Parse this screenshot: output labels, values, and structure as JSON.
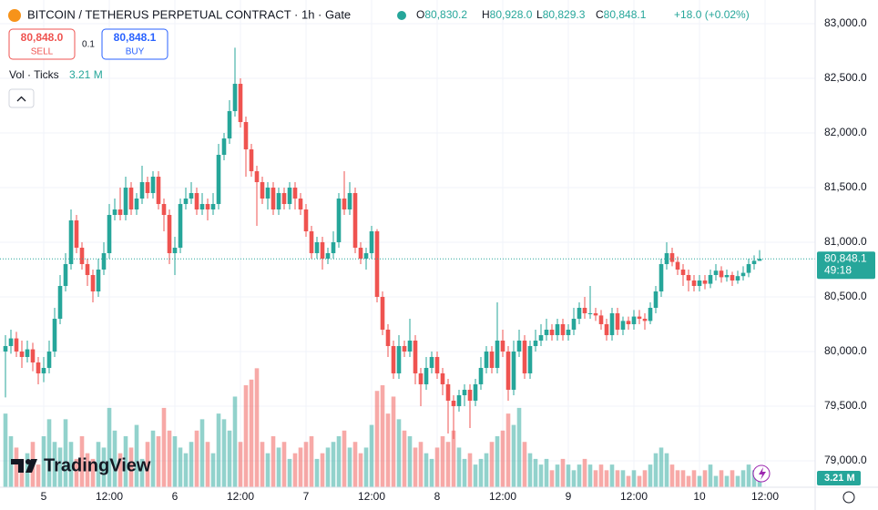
{
  "header": {
    "title": "BITCOIN / TETHERUS PERPETUAL CONTRACT · 1h · Gate",
    "ohlc": [
      {
        "key": "O",
        "value": "80,830.2"
      },
      {
        "key": "H",
        "value": "80,928.0"
      },
      {
        "key": "L",
        "value": "80,829.3"
      },
      {
        "key": "C",
        "value": "80,848.1"
      }
    ],
    "change": "+18.0 (+0.02%)"
  },
  "trade": {
    "sell_price": "80,848.0",
    "sell": "SELL",
    "spread": "0.1",
    "buy_price": "80,848.1",
    "buy": "BUY"
  },
  "volume_legend": {
    "name": "Vol · Ticks",
    "readout": "3.21 M"
  },
  "price_tag": {
    "price": "80,848.1",
    "countdown": "49:18"
  },
  "logo": "TradingView",
  "chart_data": {
    "type": "candlestick",
    "up_color": "#26a69a",
    "down_color": "#ef5350",
    "grid": true,
    "ylim": [
      78758,
      83217
    ],
    "volume_lim": [
      0,
      86
    ],
    "yticks": [
      {
        "value": 79000,
        "label": "79,000.0"
      },
      {
        "value": 79500,
        "label": "79,500.0"
      },
      {
        "value": 80000,
        "label": "80,000.0"
      },
      {
        "value": 80500,
        "label": "80,500.0"
      },
      {
        "value": 81000,
        "label": "81,000.0"
      },
      {
        "value": 81500,
        "label": "81,500.0"
      },
      {
        "value": 82000,
        "label": "82,000.0"
      },
      {
        "value": 82500,
        "label": "82,500.0"
      },
      {
        "value": 83000,
        "label": "83,000.0"
      }
    ],
    "xticks": [
      {
        "value": 7,
        "label": "5"
      },
      {
        "value": 19,
        "label": "12:00"
      },
      {
        "value": 31,
        "label": "6"
      },
      {
        "value": 43,
        "label": "12:00"
      },
      {
        "value": 55,
        "label": "7"
      },
      {
        "value": 67,
        "label": "12:00"
      },
      {
        "value": 79,
        "label": "8"
      },
      {
        "value": 91,
        "label": "12:00"
      },
      {
        "value": 103,
        "label": "9"
      },
      {
        "value": 115,
        "label": "12:00"
      },
      {
        "value": 127,
        "label": "10"
      },
      {
        "value": 139,
        "label": "12:00"
      }
    ],
    "open": [
      80000,
      80050,
      80120,
      80000,
      79950,
      80020,
      79900,
      79800,
      79850,
      80000,
      80300,
      80600,
      80800,
      81200,
      80950,
      80800,
      80700,
      80550,
      80750,
      80900,
      81250,
      81300,
      81250,
      81500,
      81300,
      81400,
      81550,
      81450,
      81600,
      81350,
      81250,
      80900,
      80950,
      81350,
      81400,
      81450,
      81300,
      81350,
      81300,
      81350,
      81800,
      81950,
      82200,
      82450,
      82100,
      81850,
      81650,
      81550,
      81400,
      81500,
      81300,
      81450,
      81350,
      81500,
      81400,
      81300,
      81100,
      80900,
      81000,
      80850,
      80900,
      81000,
      81400,
      81300,
      81450,
      80950,
      80850,
      80900,
      81100,
      80500,
      80200,
      80050,
      79800,
      80050,
      80000,
      80100,
      79800,
      79700,
      79850,
      79950,
      79800,
      79700,
      79550,
      79500,
      79600,
      79650,
      79550,
      79700,
      79850,
      80000,
      79850,
      80100,
      80000,
      79650,
      80000,
      80100,
      79800,
      80050,
      80100,
      80150,
      80200,
      80150,
      80250,
      80150,
      80200,
      80300,
      80400,
      80350,
      80350,
      80330,
      80250,
      80150,
      80350,
      80200,
      80280,
      80250,
      80320,
      80300,
      80280,
      80400,
      80550,
      80800,
      80900,
      80820,
      80750,
      80700,
      80650,
      80600,
      80650,
      80620,
      80700,
      80740,
      80680,
      80700,
      80650,
      80690,
      80720,
      80800,
      80830.2
    ],
    "high": [
      80150,
      80200,
      80180,
      80100,
      80100,
      80080,
      79950,
      79950,
      80100,
      80400,
      80700,
      80900,
      81300,
      81250,
      81000,
      80850,
      80750,
      80850,
      81000,
      81350,
      81400,
      81500,
      81600,
      81550,
      81450,
      81700,
      81600,
      81650,
      81650,
      81400,
      81300,
      81050,
      81400,
      81500,
      81550,
      81500,
      81450,
      81400,
      81450,
      81900,
      82000,
      82300,
      82780,
      82500,
      82150,
      81900,
      81700,
      81600,
      81550,
      81550,
      81500,
      81500,
      81550,
      81550,
      81450,
      81350,
      81150,
      81050,
      81050,
      80950,
      81100,
      81450,
      81650,
      81550,
      81500,
      81000,
      80950,
      81150,
      81120,
      80550,
      80250,
      80100,
      80150,
      80100,
      80300,
      80150,
      79850,
      79950,
      80000,
      80000,
      79850,
      79750,
      79600,
      79650,
      79700,
      79700,
      79750,
      79950,
      80050,
      80050,
      80450,
      80200,
      80050,
      80100,
      80200,
      80150,
      80100,
      80200,
      80250,
      80300,
      80250,
      80300,
      80300,
      80250,
      80400,
      80450,
      80500,
      80600,
      80400,
      80380,
      80300,
      80400,
      80400,
      80320,
      80320,
      80380,
      80380,
      80350,
      80450,
      80600,
      80850,
      81000,
      80950,
      80870,
      80800,
      80750,
      80700,
      80700,
      80700,
      80750,
      80800,
      80780,
      80750,
      80730,
      80740,
      80780,
      80850,
      80880,
      80928
    ],
    "low": [
      79580,
      79980,
      79950,
      79850,
      79900,
      79820,
      79700,
      79720,
      79800,
      79950,
      80250,
      80550,
      80750,
      80900,
      80750,
      80600,
      80450,
      80500,
      80700,
      80850,
      81200,
      81200,
      81200,
      81250,
      81250,
      81350,
      81400,
      81400,
      81300,
      81100,
      80800,
      80700,
      80900,
      81300,
      81350,
      81250,
      81250,
      81200,
      81250,
      81300,
      81750,
      81900,
      82150,
      82050,
      81600,
      81600,
      81150,
      81350,
      81300,
      81250,
      81250,
      81300,
      81300,
      81300,
      81250,
      81050,
      80850,
      80850,
      80750,
      80800,
      80850,
      80950,
      81250,
      81250,
      80900,
      80800,
      80750,
      80850,
      80450,
      80150,
      79950,
      79750,
      79750,
      79950,
      79950,
      79700,
      79500,
      79650,
      79800,
      79750,
      79600,
      79250,
      79200,
      79450,
      79500,
      79300,
      79500,
      79650,
      79800,
      79800,
      79800,
      79950,
      79550,
      79600,
      79950,
      79750,
      79750,
      80000,
      80050,
      80100,
      80100,
      80100,
      80100,
      80100,
      80150,
      80250,
      80300,
      80300,
      80280,
      80200,
      80100,
      80100,
      80150,
      80150,
      80200,
      80200,
      80250,
      80200,
      80250,
      80350,
      80500,
      80750,
      80780,
      80700,
      80600,
      80550,
      80550,
      80550,
      80570,
      80580,
      80650,
      80630,
      80640,
      80600,
      80620,
      80650,
      80680,
      80750,
      80829.3
    ],
    "close": [
      80050,
      80120,
      80000,
      79950,
      80020,
      79900,
      79800,
      79850,
      80000,
      80300,
      80600,
      80800,
      81200,
      80950,
      80800,
      80700,
      80550,
      80750,
      80900,
      81250,
      81300,
      81250,
      81500,
      81300,
      81400,
      81550,
      81450,
      81600,
      81350,
      81250,
      80900,
      80950,
      81350,
      81400,
      81450,
      81300,
      81350,
      81300,
      81350,
      81800,
      81950,
      82200,
      82450,
      82100,
      81850,
      81650,
      81550,
      81400,
      81500,
      81300,
      81450,
      81350,
      81500,
      81400,
      81300,
      81100,
      80900,
      81000,
      80850,
      80900,
      81000,
      81400,
      81300,
      81450,
      80950,
      80850,
      80900,
      81100,
      80500,
      80200,
      80050,
      79800,
      80050,
      80000,
      80100,
      79800,
      79700,
      79850,
      79950,
      79800,
      79700,
      79550,
      79500,
      79600,
      79650,
      79550,
      79700,
      79850,
      80000,
      79850,
      80100,
      80000,
      79650,
      80000,
      80100,
      79800,
      80050,
      80100,
      80150,
      80200,
      80150,
      80250,
      80150,
      80200,
      80300,
      80400,
      80350,
      80350,
      80330,
      80250,
      80150,
      80350,
      80200,
      80280,
      80250,
      80320,
      80300,
      80280,
      80400,
      80550,
      80800,
      80900,
      80820,
      80750,
      80700,
      80650,
      80600,
      80650,
      80620,
      80700,
      80740,
      80680,
      80700,
      80650,
      80690,
      80720,
      80800,
      80830.2,
      80848.1
    ],
    "volume": [
      13,
      9,
      7,
      5,
      6,
      8,
      4,
      9,
      12,
      8,
      7,
      12,
      8,
      5,
      9,
      6,
      5,
      8,
      7,
      14,
      10,
      6,
      9,
      7,
      11,
      5,
      8,
      10,
      9,
      14,
      10,
      9,
      7,
      6,
      8,
      10,
      12,
      8,
      6,
      13,
      12,
      10,
      16,
      8,
      18,
      19,
      21,
      8,
      6,
      9,
      7,
      8,
      5,
      6,
      7,
      8,
      9,
      5,
      6,
      7,
      8,
      9,
      10,
      7,
      8,
      6,
      7,
      11,
      17,
      18,
      13,
      16,
      12,
      10,
      9,
      7,
      8,
      6,
      5,
      7,
      9,
      8,
      10,
      7,
      5,
      6,
      4,
      5,
      6,
      8,
      9,
      10,
      13,
      11,
      14,
      8,
      6,
      5,
      4,
      5,
      3,
      4,
      5,
      4,
      3,
      4,
      5,
      4,
      3,
      4,
      3,
      4,
      3,
      3,
      2,
      3,
      2,
      3,
      4,
      6,
      7,
      6,
      4,
      3,
      3,
      2,
      3,
      2,
      3,
      4,
      2,
      3,
      2,
      3,
      2,
      3,
      4,
      3,
      3.21
    ]
  }
}
